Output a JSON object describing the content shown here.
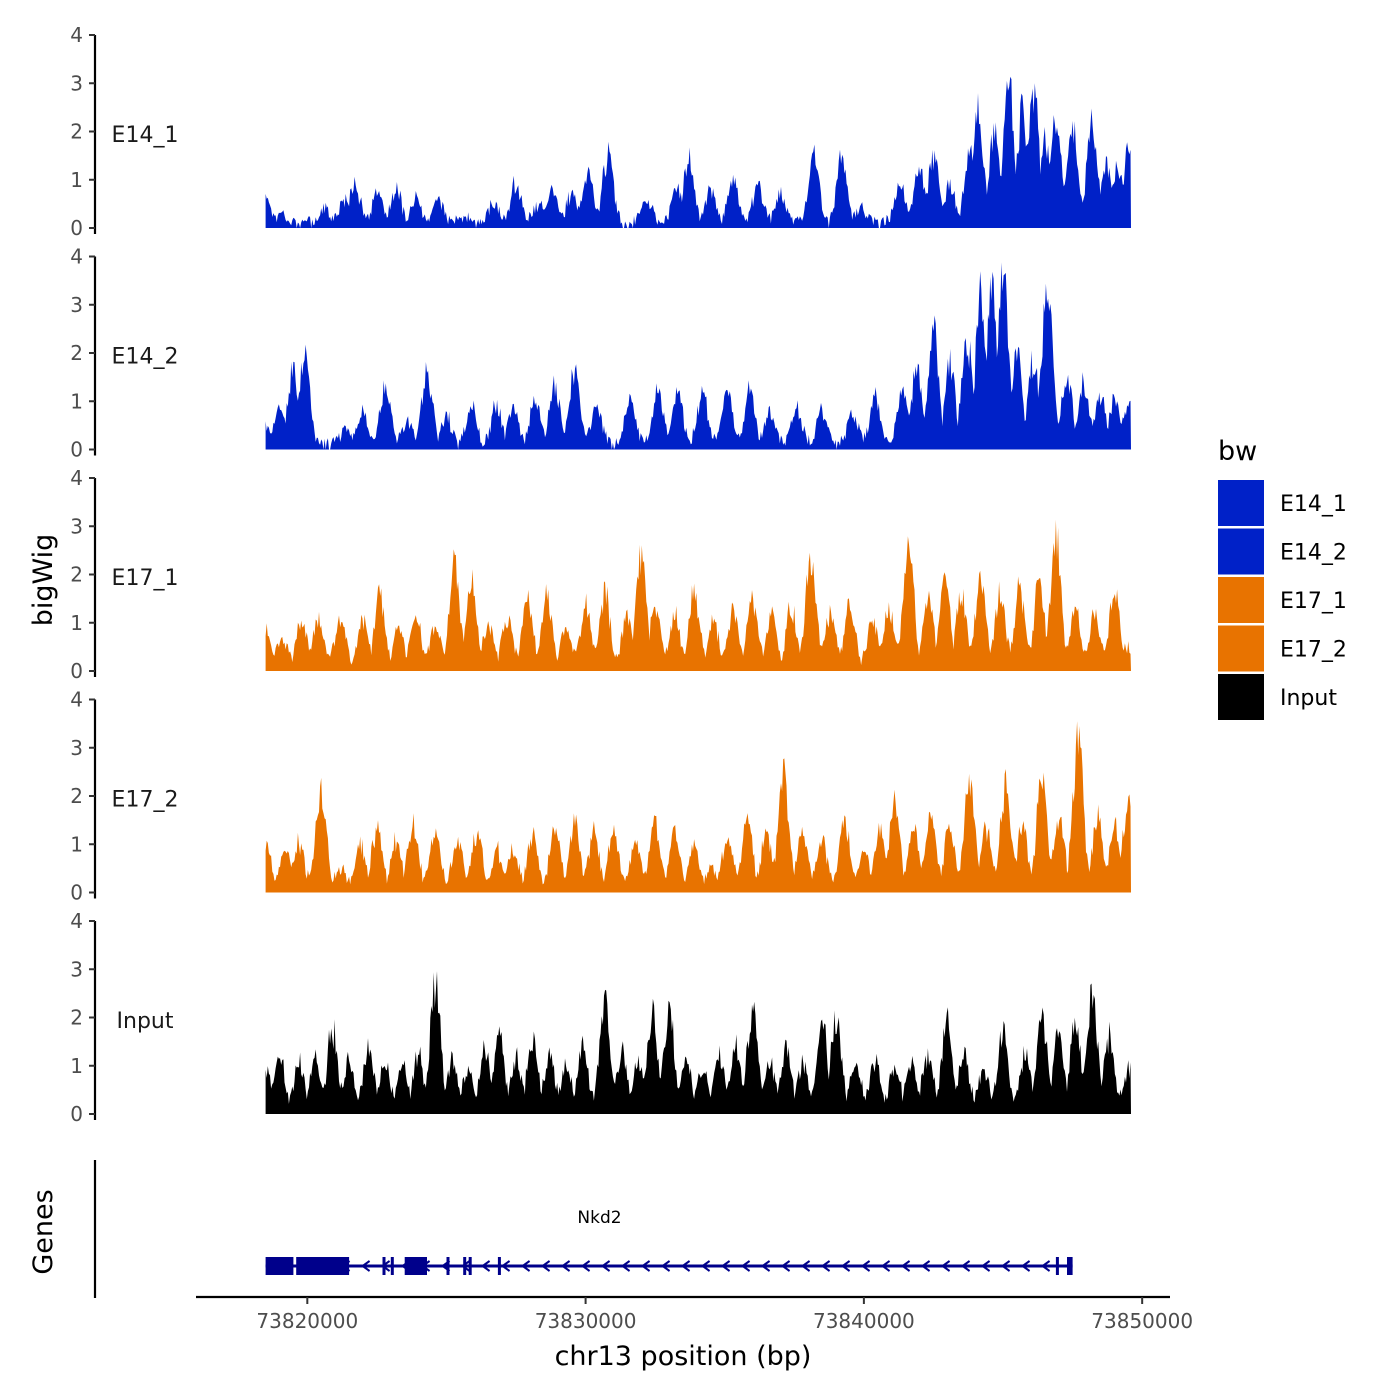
{
  "chart_data": {
    "type": "area",
    "ylabel": "bigWig",
    "genes_label": "Genes",
    "xlabel": "chr13 position (bp)",
    "xlim": [
      73816000,
      73851000
    ],
    "data_range": [
      73818500,
      73849600
    ],
    "ylim": [
      0,
      4
    ],
    "yticks": [
      "0",
      "1",
      "2",
      "3",
      "4"
    ],
    "xticks": [
      {
        "value": 73820000,
        "label": "73820000"
      },
      {
        "value": 73830000,
        "label": "73830000"
      },
      {
        "value": 73840000,
        "label": "73840000"
      },
      {
        "value": 73850000,
        "label": "73850000"
      }
    ],
    "legend": {
      "title": "bw",
      "entries": [
        {
          "label": "E14_1",
          "color": "#0021C8"
        },
        {
          "label": "E14_2",
          "color": "#0021C8"
        },
        {
          "label": "E17_1",
          "color": "#E87300"
        },
        {
          "label": "E17_2",
          "color": "#E87300"
        },
        {
          "label": "Input",
          "color": "#000000"
        }
      ]
    },
    "series": [
      {
        "name": "E14_1",
        "color": "#0021C8",
        "peaks": [
          [
            73818500,
            0.6
          ],
          [
            73819100,
            0.2
          ],
          [
            73820600,
            0.3
          ],
          [
            73821300,
            0.5
          ],
          [
            73821700,
            0.9
          ],
          [
            73822500,
            0.6
          ],
          [
            73823200,
            0.7
          ],
          [
            73823900,
            0.5
          ],
          [
            73824700,
            0.5
          ],
          [
            73825700,
            0.1
          ],
          [
            73826700,
            0.4
          ],
          [
            73827500,
            0.9
          ],
          [
            73828300,
            0.4
          ],
          [
            73828800,
            0.8
          ],
          [
            73829500,
            0.6
          ],
          [
            73830100,
            1.1
          ],
          [
            73830800,
            1.5
          ],
          [
            73832200,
            0.5
          ],
          [
            73833300,
            0.8
          ],
          [
            73833700,
            1.4
          ],
          [
            73834500,
            0.7
          ],
          [
            73835300,
            1.0
          ],
          [
            73836200,
            0.8
          ],
          [
            73837000,
            0.6
          ],
          [
            73838200,
            1.5
          ],
          [
            73839200,
            1.4
          ],
          [
            73839900,
            0.3
          ],
          [
            73841300,
            0.9
          ],
          [
            73842000,
            1.3
          ],
          [
            73842500,
            1.5
          ],
          [
            73843100,
            0.8
          ],
          [
            73843800,
            1.5
          ],
          [
            73844100,
            2.6
          ],
          [
            73844700,
            2.0
          ],
          [
            73845200,
            3.2
          ],
          [
            73845700,
            2.5
          ],
          [
            73846100,
            2.9
          ],
          [
            73846500,
            1.9
          ],
          [
            73846900,
            2.3
          ],
          [
            73847500,
            2.3
          ],
          [
            73848200,
            2.2
          ],
          [
            73848700,
            1.3
          ],
          [
            73849100,
            1.2
          ],
          [
            73849500,
            1.7
          ]
        ]
      },
      {
        "name": "E14_2",
        "color": "#0021C8",
        "peaks": [
          [
            73818500,
            0.4
          ],
          [
            73819000,
            0.8
          ],
          [
            73819500,
            1.6
          ],
          [
            73819900,
            1.9
          ],
          [
            73821400,
            0.4
          ],
          [
            73822000,
            0.7
          ],
          [
            73822800,
            1.2
          ],
          [
            73823600,
            0.5
          ],
          [
            73824300,
            1.6
          ],
          [
            73825000,
            0.6
          ],
          [
            73825900,
            0.8
          ],
          [
            73826800,
            0.9
          ],
          [
            73827400,
            0.8
          ],
          [
            73828200,
            1.0
          ],
          [
            73828900,
            1.3
          ],
          [
            73829600,
            1.6
          ],
          [
            73830400,
            0.9
          ],
          [
            73831600,
            0.9
          ],
          [
            73832600,
            1.2
          ],
          [
            73833300,
            1.2
          ],
          [
            73834200,
            1.2
          ],
          [
            73835100,
            1.2
          ],
          [
            73835900,
            1.2
          ],
          [
            73836600,
            0.7
          ],
          [
            73837600,
            0.8
          ],
          [
            73838500,
            0.8
          ],
          [
            73839600,
            0.7
          ],
          [
            73840400,
            1.0
          ],
          [
            73841400,
            1.2
          ],
          [
            73841900,
            1.7
          ],
          [
            73842500,
            2.5
          ],
          [
            73843100,
            1.8
          ],
          [
            73843700,
            2.4
          ],
          [
            73844200,
            3.4
          ],
          [
            73844600,
            3.5
          ],
          [
            73845000,
            3.8
          ],
          [
            73845500,
            2.1
          ],
          [
            73846100,
            1.9
          ],
          [
            73846600,
            3.6
          ],
          [
            73847300,
            1.5
          ],
          [
            73847900,
            1.3
          ],
          [
            73848500,
            1.1
          ],
          [
            73849000,
            1.0
          ],
          [
            73849500,
            0.8
          ]
        ]
      },
      {
        "name": "E17_1",
        "color": "#E87300",
        "peaks": [
          [
            73818500,
            0.8
          ],
          [
            73819100,
            0.6
          ],
          [
            73819800,
            1.0
          ],
          [
            73820400,
            1.0
          ],
          [
            73821200,
            1.1
          ],
          [
            73822000,
            1.0
          ],
          [
            73822600,
            1.5
          ],
          [
            73823300,
            0.8
          ],
          [
            73823900,
            1.2
          ],
          [
            73824600,
            0.9
          ],
          [
            73825300,
            2.2
          ],
          [
            73825900,
            1.8
          ],
          [
            73826500,
            1.0
          ],
          [
            73827200,
            1.1
          ],
          [
            73827900,
            1.5
          ],
          [
            73828600,
            1.6
          ],
          [
            73829300,
            0.9
          ],
          [
            73830000,
            1.4
          ],
          [
            73830700,
            1.6
          ],
          [
            73831500,
            1.1
          ],
          [
            73832000,
            2.4
          ],
          [
            73832500,
            1.3
          ],
          [
            73833200,
            1.1
          ],
          [
            73833900,
            1.6
          ],
          [
            73834600,
            1.0
          ],
          [
            73835300,
            1.2
          ],
          [
            73836000,
            1.5
          ],
          [
            73836700,
            1.1
          ],
          [
            73837400,
            1.3
          ],
          [
            73838100,
            2.4
          ],
          [
            73838800,
            1.2
          ],
          [
            73839500,
            1.4
          ],
          [
            73840300,
            1.0
          ],
          [
            73840900,
            1.2
          ],
          [
            73841600,
            2.9
          ],
          [
            73842300,
            1.7
          ],
          [
            73842900,
            1.9
          ],
          [
            73843500,
            1.7
          ],
          [
            73844200,
            2.0
          ],
          [
            73844900,
            1.7
          ],
          [
            73845600,
            1.7
          ],
          [
            73846300,
            1.8
          ],
          [
            73846900,
            2.9
          ],
          [
            73847600,
            1.2
          ],
          [
            73848300,
            1.1
          ],
          [
            73849000,
            1.7
          ],
          [
            73849500,
            0.4
          ]
        ]
      },
      {
        "name": "E17_2",
        "color": "#E87300",
        "peaks": [
          [
            73818500,
            0.9
          ],
          [
            73819200,
            0.8
          ],
          [
            73819700,
            1.0
          ],
          [
            73820500,
            2.1
          ],
          [
            73821200,
            0.4
          ],
          [
            73821900,
            0.9
          ],
          [
            73822500,
            1.3
          ],
          [
            73823200,
            1.0
          ],
          [
            73823800,
            1.4
          ],
          [
            73824600,
            1.2
          ],
          [
            73825400,
            1.0
          ],
          [
            73826100,
            1.2
          ],
          [
            73826800,
            0.8
          ],
          [
            73827400,
            0.8
          ],
          [
            73828100,
            1.1
          ],
          [
            73828900,
            1.3
          ],
          [
            73829600,
            1.4
          ],
          [
            73830300,
            1.2
          ],
          [
            73831000,
            1.2
          ],
          [
            73831800,
            1.0
          ],
          [
            73832500,
            1.5
          ],
          [
            73833200,
            1.3
          ],
          [
            73833900,
            0.9
          ],
          [
            73834500,
            0.4
          ],
          [
            73835100,
            1.1
          ],
          [
            73835800,
            1.5
          ],
          [
            73836500,
            1.2
          ],
          [
            73837100,
            2.5
          ],
          [
            73837800,
            1.2
          ],
          [
            73838500,
            1.0
          ],
          [
            73839300,
            1.5
          ],
          [
            73840000,
            0.8
          ],
          [
            73840600,
            1.2
          ],
          [
            73841100,
            1.9
          ],
          [
            73841800,
            1.4
          ],
          [
            73842400,
            1.6
          ],
          [
            73843100,
            1.4
          ],
          [
            73843800,
            2.4
          ],
          [
            73844400,
            1.3
          ],
          [
            73845100,
            2.2
          ],
          [
            73845700,
            1.4
          ],
          [
            73846400,
            2.5
          ],
          [
            73847000,
            1.6
          ],
          [
            73847700,
            3.3
          ],
          [
            73848400,
            1.5
          ],
          [
            73849000,
            1.4
          ],
          [
            73849500,
            1.9
          ]
        ]
      },
      {
        "name": "Input",
        "color": "#000000",
        "peaks": [
          [
            73818500,
            0.9
          ],
          [
            73819000,
            1.2
          ],
          [
            73819700,
            1.0
          ],
          [
            73820300,
            1.2
          ],
          [
            73820900,
            1.8
          ],
          [
            73821500,
            1.1
          ],
          [
            73822200,
            1.3
          ],
          [
            73822800,
            1.0
          ],
          [
            73823400,
            1.0
          ],
          [
            73824000,
            1.2
          ],
          [
            73824600,
            2.9
          ],
          [
            73825200,
            1.1
          ],
          [
            73825800,
            0.9
          ],
          [
            73826400,
            1.3
          ],
          [
            73826900,
            1.6
          ],
          [
            73827500,
            1.1
          ],
          [
            73828100,
            1.5
          ],
          [
            73828700,
            1.2
          ],
          [
            73829300,
            1.0
          ],
          [
            73829900,
            1.4
          ],
          [
            73830700,
            2.3
          ],
          [
            73831300,
            1.2
          ],
          [
            73831900,
            1.0
          ],
          [
            73832400,
            2.1
          ],
          [
            73833000,
            2.2
          ],
          [
            73833600,
            1.1
          ],
          [
            73834200,
            0.9
          ],
          [
            73834800,
            1.2
          ],
          [
            73835400,
            1.3
          ],
          [
            73836000,
            2.2
          ],
          [
            73836600,
            1.1
          ],
          [
            73837200,
            1.3
          ],
          [
            73837800,
            1.0
          ],
          [
            73838500,
            2.0
          ],
          [
            73839000,
            2.0
          ],
          [
            73839700,
            1.0
          ],
          [
            73840400,
            1.1
          ],
          [
            73841100,
            1.0
          ],
          [
            73841700,
            1.0
          ],
          [
            73842300,
            1.2
          ],
          [
            73843000,
            2.0
          ],
          [
            73843600,
            1.2
          ],
          [
            73844300,
            0.9
          ],
          [
            73845000,
            1.7
          ],
          [
            73845800,
            1.2
          ],
          [
            73846400,
            2.0
          ],
          [
            73847000,
            1.7
          ],
          [
            73847600,
            1.9
          ],
          [
            73848200,
            2.5
          ],
          [
            73848800,
            1.6
          ],
          [
            73849500,
            0.9
          ]
        ]
      }
    ],
    "gene": {
      "name": "Nkd2",
      "start": 73818500,
      "end": 73847500,
      "strand": "-",
      "exons": [
        [
          73818500,
          73819500
        ],
        [
          73819600,
          73821500
        ],
        [
          73822700,
          73822800
        ],
        [
          73823000,
          73823050
        ],
        [
          73823500,
          73824300
        ],
        [
          73825000,
          73825050
        ],
        [
          73825600,
          73825650
        ],
        [
          73825800,
          73825900
        ],
        [
          73826850,
          73826900
        ],
        [
          73846900,
          73846950
        ],
        [
          73847300,
          73847500
        ]
      ]
    }
  }
}
